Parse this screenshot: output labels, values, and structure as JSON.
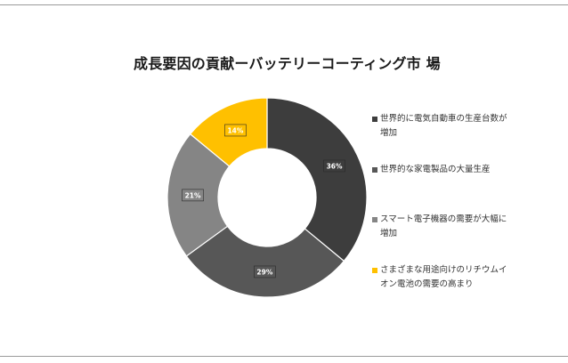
{
  "chart_data": {
    "type": "pie",
    "variant": "donut",
    "title": "成長要因の貢献ーバッテリーコーティング市 場",
    "start": "top",
    "direction": "clockwise",
    "legend_position": "right",
    "slices": [
      {
        "label": "世界的に電気自動車の生産台数が増加",
        "value": 36,
        "value_label": "36%",
        "color": "#3d3d3d"
      },
      {
        "label": "世界的な家電製品の大量生産",
        "value": 29,
        "value_label": "29%",
        "color": "#575757"
      },
      {
        "label": "スマート電子機器の需要が大幅に増加",
        "value": 21,
        "value_label": "21%",
        "color": "#858585"
      },
      {
        "label": "さまざまな用途向けのリチウムイオン電池の需要の高まり",
        "value": 14,
        "value_label": "14%",
        "color": "#ffc000"
      }
    ]
  },
  "legend": {
    "items": [
      {
        "line1": "世界的に電気自動車の生産台数が",
        "line2": "増加",
        "color": "#3d3d3d"
      },
      {
        "line1": "世界的な家電製品の大量生産",
        "line2": "",
        "color": "#575757"
      },
      {
        "line1": "スマート電子機器の需要が大幅に",
        "line2": "増加",
        "color": "#858585"
      },
      {
        "line1": "さまざまな用途向けのリチウムイ",
        "line2": "オン電池の需要の高まり",
        "color": "#ffc000"
      }
    ]
  }
}
